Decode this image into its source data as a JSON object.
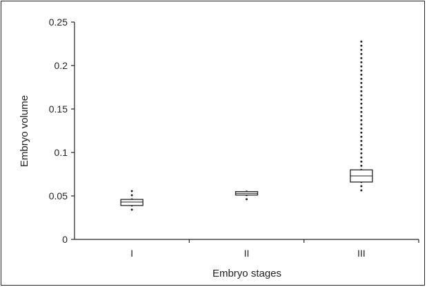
{
  "chart_data": {
    "type": "box",
    "xlabel": "Embryo stages",
    "ylabel": "Embryo volume",
    "ylim": [
      0,
      0.25
    ],
    "yticks": [
      {
        "value": 0,
        "label": "0"
      },
      {
        "value": 0.05,
        "label": "0.05"
      },
      {
        "value": 0.1,
        "label": "0.1"
      },
      {
        "value": 0.15,
        "label": "0.15"
      },
      {
        "value": 0.2,
        "label": "0.2"
      },
      {
        "value": 0.25,
        "label": "0.25"
      }
    ],
    "categories": [
      "I",
      "II",
      "III"
    ],
    "boxes": [
      {
        "category": "I",
        "whisker_low": 0.033,
        "q1": 0.039,
        "median": 0.043,
        "q3": 0.046,
        "whisker_high": 0.06
      },
      {
        "category": "II",
        "whisker_low": 0.046,
        "q1": 0.051,
        "median": 0.053,
        "q3": 0.055,
        "whisker_high": 0.056
      },
      {
        "category": "III",
        "whisker_low": 0.055,
        "q1": 0.066,
        "median": 0.073,
        "q3": 0.08,
        "whisker_high": 0.232
      }
    ],
    "grid": false,
    "legend": "none",
    "colors": {
      "box_fill": "#ffffff",
      "stroke": "#222222"
    }
  }
}
